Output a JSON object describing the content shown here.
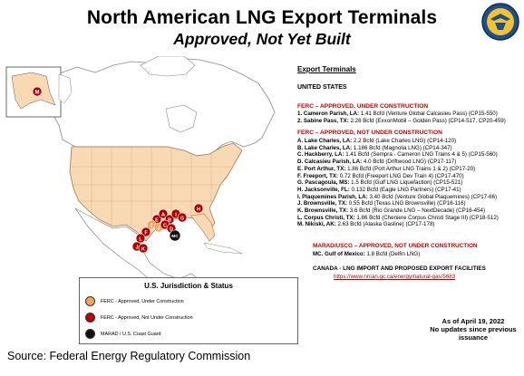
{
  "title": "North American LNG Export Terminals",
  "subtitle": "Approved, Not Yet Built",
  "seal_name": "FERC seal",
  "legend": {
    "title": "U.S. Jurisdiction & Status",
    "items": [
      {
        "label": "FERC - Approved, Under Construction",
        "color": "#f5a55a"
      },
      {
        "label": "FERC - Approved, Not Under Construction",
        "color": "#c00000"
      },
      {
        "label": "MARAD / U.S. Coast Guard",
        "color": "#111111"
      }
    ]
  },
  "panel": {
    "heading": "Export Terminals",
    "country": "UNITED STATES",
    "group1_heading": "FERC – APPROVED, UNDER CONSTRUCTION",
    "group1": [
      {
        "key": "1. Cameron Parish, LA:",
        "text": "1.41 Bcfd (Venture Global Calcasieu Pass) (CP15-550)"
      },
      {
        "key": "2. Sabine Pass, TX:",
        "text": "2.26 Bcfd (ExxonMobil – Golden Pass) (CP14-517, CP20-459)"
      }
    ],
    "group2_heading": "FERC – APPROVED, NOT UNDER CONSTRUCTION",
    "group2": [
      {
        "key": "A. Lake Charles, LA:",
        "text": "2.2 Bcfd (Lake Charles LNG) (CP14-120)"
      },
      {
        "key": "B. Lake Charles, LA:",
        "text": "1.186 Bcfd (Magnolia LNG) (CP14-347)"
      },
      {
        "key": "C. Hackberry, LA:",
        "text": "1.41 Bcfd (Sempra - Cameron LNG Trains 4 & 5) (CP15-560)"
      },
      {
        "key": "D. Calcasieu Parish, LA:",
        "text": "4.0 Bcfd (Driftwood LNG) (CP17-117)"
      },
      {
        "key": "E. Port Arthur, TX:",
        "text": "1.86 Bcfd (Port Arthur LNG Trains 1 & 2) (CP17-20)"
      },
      {
        "key": "F. Freeport, TX:",
        "text": "0.72 Bcfd (Freeport LNG Dev Train 4) (CP17-470)"
      },
      {
        "key": "G. Pascagoula, MS:",
        "text": "1.5 Bcfd (Gulf LNG Liquefaction) (CP15-521)"
      },
      {
        "key": "H. Jacksonville, FL:",
        "text": "0.132 Bcfd (Eagle LNG Partners) (CP17-41)"
      },
      {
        "key": "I. Plaquemines Parish, LA:",
        "text": "3.40 Bcfd (Venture Global Plaquemines)  (CP17-66)"
      },
      {
        "key": "J.  Brownsville, TX:",
        "text": "0.55 Bcfd (Texas LNG Brownsville) (CP16-116)"
      },
      {
        "key": "K. Brownsville, TX:",
        "text": "3.6 Bcfd (Rio Grande LNG – NextDecade) (CP16-454)"
      },
      {
        "key": "L. Corpus Christi, TX:",
        "text": "1.86 Bcfd (Cheniere Corpus Christi Stage III) (CP18-512)"
      },
      {
        "key": "M. Nikiski, AK:",
        "text": "2.63 Bcfd (Alaska Gasline) (CP17-178)"
      }
    ],
    "group3_heading": "MARAD/USCG – APPROVED, NOT UNDER CONSTRUCTION",
    "group3": [
      {
        "key": "MC. Gulf of Mexico:",
        "text": "1.8 Bcfd (Delfin LNG)"
      }
    ],
    "canada_heading": "CANADA - LNG IMPORT AND PROPOSED EXPORT FACILITIES",
    "canada_link": "https://www.nrcan.gc.ca/energy/natural-gas/5683"
  },
  "as_of_line1": "As of April 19, 2022",
  "as_of_line2": "No updates since previous issuance",
  "source": "Source: Federal Energy Regulatory Commission",
  "map_markers": {
    "orange": [
      "1",
      "2"
    ],
    "red": [
      "A",
      "B",
      "C",
      "D",
      "E",
      "F",
      "G",
      "H",
      "I",
      "J",
      "K",
      "L",
      "M"
    ],
    "black": [
      "MC"
    ]
  }
}
